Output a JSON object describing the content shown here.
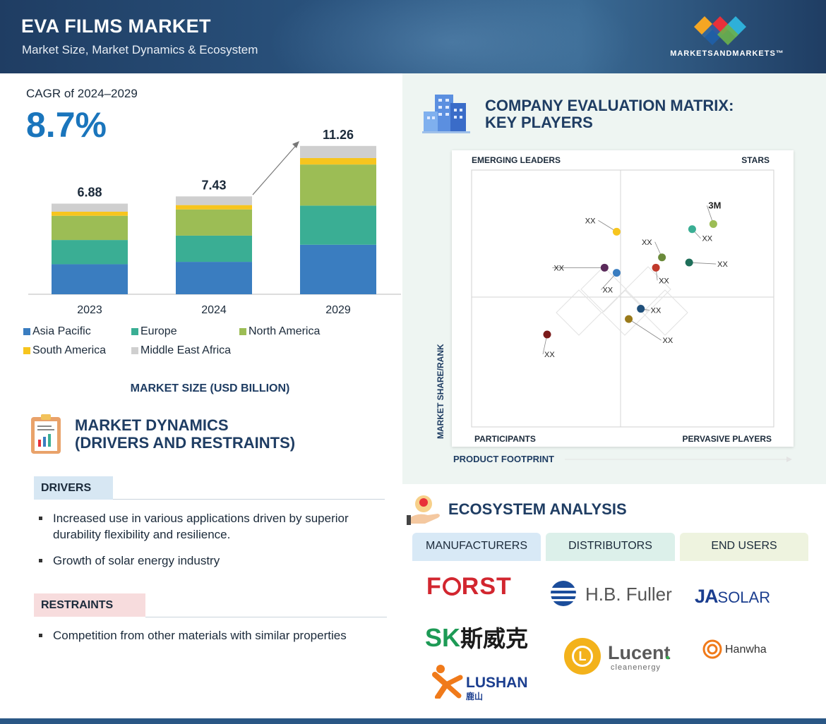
{
  "header": {
    "title": "EVA FILMS MARKET",
    "subtitle": "Market Size, Market Dynamics & Ecosystem",
    "brand": "MARKETSANDMARKETS™",
    "brand_colors": [
      "#f5a623",
      "#2eb0d9",
      "#e8303a",
      "#6ab04c",
      "#1f5fa8"
    ]
  },
  "cagr": {
    "label": "CAGR of 2024–2029",
    "value": "8.7%"
  },
  "chart_data": {
    "type": "bar",
    "stacked": true,
    "categories": [
      "2023",
      "2024",
      "2029"
    ],
    "totals": [
      "6.88",
      "7.43",
      "11.26"
    ],
    "series": [
      {
        "name": "Asia Pacific",
        "color": "#3a7dc0",
        "values": [
          2.28,
          2.46,
          3.76
        ]
      },
      {
        "name": "Europe",
        "color": "#3aae94",
        "values": [
          1.84,
          1.99,
          2.97
        ]
      },
      {
        "name": "North America",
        "color": "#9cbd55",
        "values": [
          1.84,
          1.99,
          3.12
        ]
      },
      {
        "name": "South America",
        "color": "#f7c51e",
        "values": [
          0.31,
          0.33,
          0.49
        ]
      },
      {
        "name": "Middle East Africa",
        "color": "#cfcfcf",
        "values": [
          0.61,
          0.66,
          0.92
        ]
      }
    ],
    "ylim": [
      0,
      12
    ],
    "xlabel": "MARKET SIZE (USD BILLION)"
  },
  "dynamics": {
    "title_line1": "MARKET DYNAMICS",
    "title_line2": "(DRIVERS AND RESTRAINTS)",
    "drivers_label": "DRIVERS",
    "drivers": [
      "Increased use in various applications driven by superior durability flexibility and resilience.",
      "Growth of solar energy industry"
    ],
    "restraints_label": "RESTRAINTS",
    "restraints": [
      "Competition from other materials with similar properties"
    ]
  },
  "matrix": {
    "title_line1": "COMPANY EVALUATION MATRIX:",
    "title_line2": "KEY PLAYERS",
    "quadrants": {
      "top_left": "EMERGING LEADERS",
      "top_right": "STARS",
      "bottom_left": "PARTICIPANTS",
      "bottom_right": "PERVASIVE PLAYERS"
    },
    "y_axis": "MARKET SHARE/RANK",
    "x_axis": "PRODUCT FOOTPRINT",
    "players": [
      {
        "label": "3M",
        "color": "#9cbd55",
        "x": 0.8,
        "y": 0.79
      },
      {
        "label": "XX",
        "color": "#3aae94",
        "x": 0.73,
        "y": 0.77
      },
      {
        "label": "XX",
        "color": "#f7c51e",
        "x": 0.48,
        "y": 0.76
      },
      {
        "label": "XX",
        "color": "#6a8a3a",
        "x": 0.63,
        "y": 0.66
      },
      {
        "label": "XX",
        "color": "#1f6f5a",
        "x": 0.72,
        "y": 0.64
      },
      {
        "label": "XX",
        "color": "#c0392b",
        "x": 0.61,
        "y": 0.62
      },
      {
        "label": "XX",
        "color": "#5a2a5a",
        "x": 0.44,
        "y": 0.62
      },
      {
        "label": "XX",
        "color": "#3a7dc0",
        "x": 0.48,
        "y": 0.6
      },
      {
        "label": "XX",
        "color": "#1f4f7a",
        "x": 0.56,
        "y": 0.46
      },
      {
        "label": "XX",
        "color": "#9a7a1a",
        "x": 0.52,
        "y": 0.42
      },
      {
        "label": "XX",
        "color": "#7a1a1a",
        "x": 0.25,
        "y": 0.36
      }
    ]
  },
  "ecosystem": {
    "title": "ECOSYSTEM ANALYSIS",
    "tabs": [
      "MANUFACTURERS",
      "DISTRIBUTORS",
      "END USERS"
    ],
    "logos": {
      "first_pre": "F",
      "first_post": "RST",
      "sk_a": "S",
      "sk_b": "K",
      "sk_cn": "斯威克",
      "lushan": "LUSHAN",
      "lushan_cn": "鹿山",
      "hbfuller": "H.B. Fuller",
      "lucent": "Lucent",
      "lucent_dot": ".",
      "lucent_sub": "cleanenergy",
      "lucent_mark": "L",
      "ja": "JA",
      "solar": "SOLAR",
      "hanwha": "Hanwha"
    }
  }
}
